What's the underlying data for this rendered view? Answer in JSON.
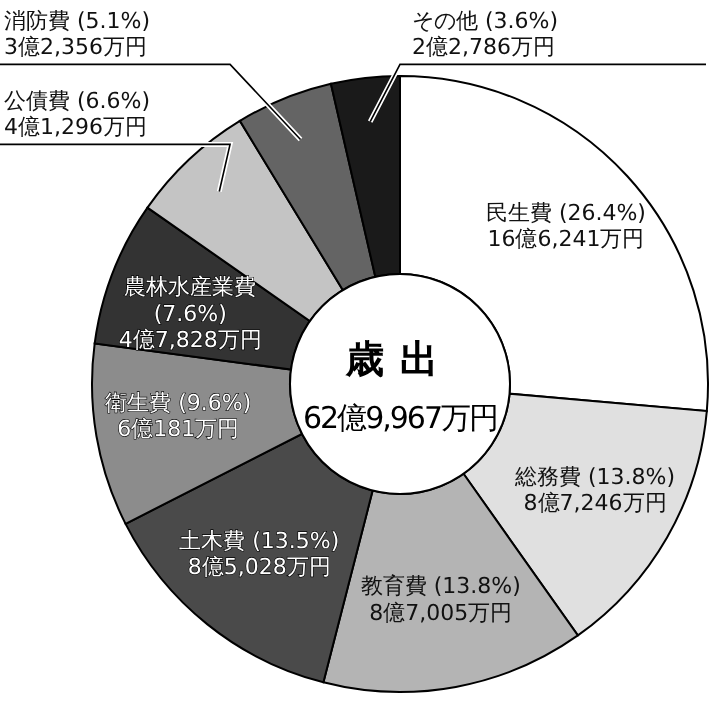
{
  "chart_data": {
    "type": "donut",
    "title": "歳出",
    "subtitle": "62億9,967万円",
    "categories": [
      "民生費",
      "総務費",
      "教育費",
      "土木費",
      "衛生費",
      "農林水産業費",
      "公債費",
      "消防費",
      "その他"
    ],
    "values": [
      26.4,
      13.8,
      13.8,
      13.5,
      9.6,
      7.6,
      6.6,
      5.1,
      3.6
    ],
    "value_labels": [
      "(26.4%)\n16億6,241万円",
      "(13.8%)\n8億7,246万円",
      "(13.8%)\n8億7,005万円",
      "(13.5%)\n8億5,028万円",
      "(9.6%)\n6億181万円",
      "(7.6%)\n4億7,828万円",
      "(6.6%)\n4億1,296万円",
      "(5.1%)\n3億2,356万円",
      "(3.6%)\n2億2,786万円"
    ],
    "colors": [
      "#ffffff",
      "#e0e0e0",
      "#b4b4b4",
      "#4a4a4a",
      "#8c8c8c",
      "#333333",
      "#c4c4c4",
      "#646464",
      "#1a1a1a"
    ]
  }
}
